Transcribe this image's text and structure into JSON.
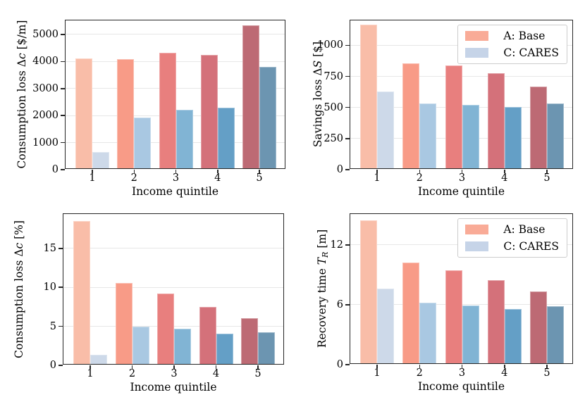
{
  "figure": {
    "background": "#ffffff"
  },
  "series_colors": {
    "base": [
      "#f9bda8",
      "#f89b87",
      "#e87f7e",
      "#d4717a",
      "#bd6a74"
    ],
    "cares": [
      "#cdd9e9",
      "#a9c8e2",
      "#81b4d4",
      "#649fc6",
      "#6c95b1"
    ]
  },
  "axis_style": {
    "spine_color": "#262626",
    "grid_color": "#e7e7e7",
    "grid": true
  },
  "legend": {
    "position": "upper right",
    "entries": [
      {
        "label": "A: Base",
        "series": "base",
        "color": "#f9ab97"
      },
      {
        "label": "C: CARES",
        "series": "cares",
        "color": "#c6d4e8"
      }
    ]
  },
  "chart_data": [
    {
      "type": "bar",
      "title": "",
      "ylabel": "Consumption loss Δc [$/m]",
      "ylabel_segments": [
        [
          "Consumption loss Δ",
          "n"
        ],
        [
          "c",
          "i"
        ],
        [
          " [$/m]",
          "n"
        ]
      ],
      "xlabel": "Income quintile",
      "categories": [
        "1",
        "2",
        "3",
        "4",
        "5"
      ],
      "series": [
        {
          "name": "A: Base",
          "key": "base",
          "values": [
            4050,
            4040,
            4280,
            4200,
            5290
          ]
        },
        {
          "name": "C: CARES",
          "key": "cares",
          "values": [
            600,
            1880,
            2170,
            2250,
            3760
          ]
        }
      ],
      "yticks": [
        0,
        1000,
        2000,
        3000,
        4000,
        5000
      ],
      "ylim": [
        0,
        5520
      ],
      "grid": true,
      "legend": false
    },
    {
      "type": "bar",
      "title": "",
      "ylabel": "Savings loss ΔS [$]",
      "ylabel_segments": [
        [
          "Savings loss Δ",
          "n"
        ],
        [
          "S",
          "i"
        ],
        [
          " [$]",
          "n"
        ]
      ],
      "xlabel": "Income quintile",
      "categories": [
        "1",
        "2",
        "3",
        "4",
        "5"
      ],
      "series": [
        {
          "name": "A: Base",
          "key": "base",
          "values": [
            1155,
            845,
            825,
            765,
            655
          ]
        },
        {
          "name": "C: CARES",
          "key": "cares",
          "values": [
            615,
            520,
            510,
            492,
            522
          ]
        }
      ],
      "yticks": [
        0,
        250,
        500,
        750,
        1000
      ],
      "ylim": [
        0,
        1200
      ],
      "grid": true,
      "legend": true
    },
    {
      "type": "bar",
      "title": "",
      "ylabel": "Consumption loss Δc [%]",
      "ylabel_segments": [
        [
          "Consumption loss Δ",
          "n"
        ],
        [
          "c",
          "i"
        ],
        [
          " [%]",
          "n"
        ]
      ],
      "xlabel": "Income quintile",
      "categories": [
        "1",
        "2",
        "3",
        "4",
        "5"
      ],
      "series": [
        {
          "name": "A: Base",
          "key": "base",
          "values": [
            18.3,
            10.4,
            9.0,
            7.3,
            5.9
          ]
        },
        {
          "name": "C: CARES",
          "key": "cares",
          "values": [
            1.2,
            4.8,
            4.55,
            3.85,
            4.1
          ]
        }
      ],
      "yticks": [
        0,
        5,
        10,
        15
      ],
      "ylim": [
        0,
        19.4
      ],
      "grid": true,
      "legend": false
    },
    {
      "type": "bar",
      "title": "",
      "ylabel": "Recovery time T_R [m]",
      "ylabel_segments": [
        [
          "Recovery time ",
          "n"
        ],
        [
          "T",
          "i"
        ],
        [
          "R",
          "isub"
        ],
        [
          " [m]",
          "n"
        ]
      ],
      "xlabel": "Income quintile",
      "categories": [
        "1",
        "2",
        "3",
        "4",
        "5"
      ],
      "series": [
        {
          "name": "A: Base",
          "key": "base",
          "values": [
            14.3,
            10.1,
            9.3,
            8.3,
            7.2
          ]
        },
        {
          "name": "C: CARES",
          "key": "cares",
          "values": [
            7.5,
            6.1,
            5.8,
            5.4,
            5.7
          ]
        }
      ],
      "yticks": [
        0,
        6,
        12
      ],
      "ylim": [
        0,
        15.1
      ],
      "grid": true,
      "legend": true
    }
  ]
}
